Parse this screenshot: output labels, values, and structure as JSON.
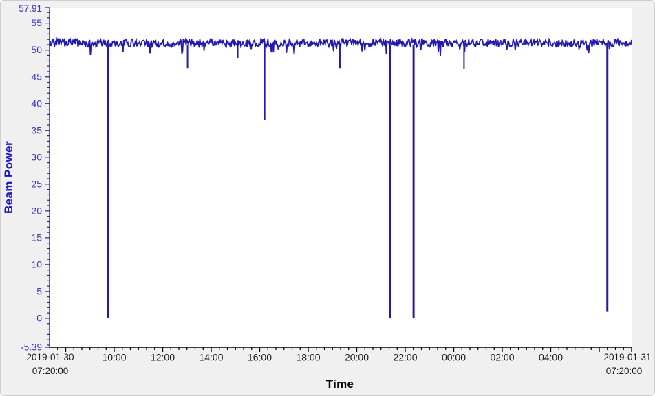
{
  "window": {
    "background": "#f0f0f0"
  },
  "chart_data": {
    "type": "line",
    "title": "",
    "xlabel": "Time",
    "ylabel": "Beam Power",
    "ylim": [
      -5.39,
      57.91
    ],
    "ylim_labels": {
      "top": "57.91",
      "bottom": "-5.39"
    },
    "y_major_ticks": [
      "0",
      "5",
      "10",
      "15",
      "20",
      "25",
      "30",
      "35",
      "40",
      "45",
      "50",
      "55"
    ],
    "y_minor_step": 1,
    "x_start": {
      "date": "2019-01-30",
      "time": "07:20:00"
    },
    "x_end": {
      "date": "2019-01-31",
      "time": "07:20:00"
    },
    "x_span_hours": 24,
    "x_minor_step_minutes": 20,
    "x_major_ticks": [
      {
        "offset_hours": 0.6667,
        "label": ""
      },
      {
        "offset_hours": 2.6667,
        "label": "10:00"
      },
      {
        "offset_hours": 4.6667,
        "label": "12:00"
      },
      {
        "offset_hours": 6.6667,
        "label": "14:00"
      },
      {
        "offset_hours": 8.6667,
        "label": "16:00"
      },
      {
        "offset_hours": 10.6667,
        "label": "18:00"
      },
      {
        "offset_hours": 12.6667,
        "label": "20:00"
      },
      {
        "offset_hours": 14.6667,
        "label": "22:00"
      },
      {
        "offset_hours": 16.6667,
        "label": "00:00"
      },
      {
        "offset_hours": 18.6667,
        "label": "02:00"
      },
      {
        "offset_hours": 20.6667,
        "label": "04:00"
      },
      {
        "offset_hours": 22.6667,
        "label": ""
      }
    ],
    "grid": false,
    "legend": null,
    "series": [
      {
        "name": "Beam Power",
        "baseline_mean": 51.3,
        "noise_amplitude": 0.75,
        "dropouts": [
          {
            "time": "09:45",
            "offset_hours": 2.42,
            "min_value": 0.0
          },
          {
            "time": "13:00",
            "offset_hours": 5.69,
            "min_value": 46.6
          },
          {
            "time": "15:05",
            "offset_hours": 7.76,
            "min_value": 48.5
          },
          {
            "time": "16:10",
            "offset_hours": 8.87,
            "min_value": 37.0
          },
          {
            "time": "19:20",
            "offset_hours": 11.97,
            "min_value": 46.6
          },
          {
            "time": "21:25",
            "offset_hours": 14.05,
            "min_value": 0.0
          },
          {
            "time": "22:20",
            "offset_hours": 15.01,
            "min_value": 0.0
          },
          {
            "time": "00:25",
            "offset_hours": 17.09,
            "min_value": 46.5
          },
          {
            "time": "06:20",
            "offset_hours": 23.0,
            "min_value": 1.2
          }
        ]
      }
    ],
    "colors": {
      "series": "#211ab2",
      "y_axis": "#1e1ec8",
      "y_tick_label": "#3636c2",
      "y_title": "#1515cc",
      "x_axis": "#000000",
      "x_tick_label": "#1a1a1a",
      "x_title": "#000000",
      "plot_background": "#ffffff",
      "window_background": "#f0f0f0"
    }
  }
}
